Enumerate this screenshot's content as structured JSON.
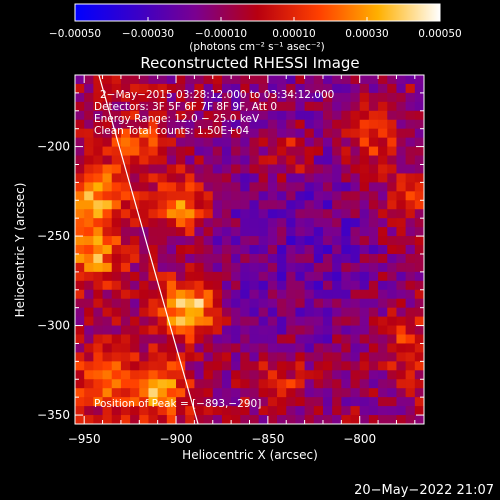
{
  "chart_data": {
    "type": "heatmap",
    "title": "Reconstructed RHESSI Image",
    "xlabel": "Heliocentric X (arcsec)",
    "ylabel": "Heliocentric Y (arcsec)",
    "xlim": [
      -955,
      -765
    ],
    "ylim": [
      -355,
      -160
    ],
    "x_ticks": [
      -950,
      -900,
      -850,
      -800
    ],
    "x_tick_labels": [
      "−950",
      "−900",
      "−850",
      "−800"
    ],
    "y_ticks": [
      -350,
      -300,
      -250,
      -200
    ],
    "y_tick_labels": [
      "−350",
      "−300",
      "−250",
      "−200"
    ],
    "colorbar": {
      "range": [
        -0.0005,
        0.0005
      ],
      "ticks": [
        -0.0005,
        -0.0003,
        -0.0001,
        0.0001,
        0.0003,
        0.0005
      ],
      "tick_labels": [
        "−0.00050",
        "−0.00030",
        "−0.00010",
        "0.00010",
        "0.00030",
        "0.00050"
      ],
      "label": "(photons cm⁻² s⁻¹ asec⁻²)",
      "colors": [
        "#0000ff",
        "#3a00c8",
        "#7a0090",
        "#b80010",
        "#ff4000",
        "#ffb000",
        "#ffffff"
      ]
    },
    "annotations": [
      "2−May−2015 03:28:12.000 to 03:34:12.000",
      "Detectors: 3F 5F 6F 7F 8F 9F, Att 0",
      "Energy Range: 12.0 − 25.0 keV",
      "Clean     Total counts: 1.50E+04"
    ],
    "peak_label": "Position of Peak = [−893,−290]",
    "peak": [
      -893,
      -290
    ],
    "sources": [
      {
        "x": -893,
        "y": -290,
        "amp": 0.0005
      },
      {
        "x": -897,
        "y": -232,
        "amp": 0.00036
      },
      {
        "x": -945,
        "y": -228,
        "amp": 0.00038
      },
      {
        "x": -945,
        "y": -260,
        "amp": 0.00034
      },
      {
        "x": -910,
        "y": -335,
        "amp": 0.0004
      },
      {
        "x": -940,
        "y": -330,
        "amp": 0.0003
      },
      {
        "x": -840,
        "y": -205,
        "amp": 0.00024
      },
      {
        "x": -795,
        "y": -195,
        "amp": 0.00026
      },
      {
        "x": -845,
        "y": -330,
        "amp": 0.00022
      },
      {
        "x": -775,
        "y": -310,
        "amp": 0.0002
      },
      {
        "x": -775,
        "y": -230,
        "amp": 0.00018
      },
      {
        "x": -920,
        "y": -200,
        "amp": 0.00022
      }
    ],
    "limb_line": [
      [
        -942,
        -160
      ],
      [
        -888,
        -355
      ]
    ],
    "footer": "20−May−2022 21:07"
  }
}
